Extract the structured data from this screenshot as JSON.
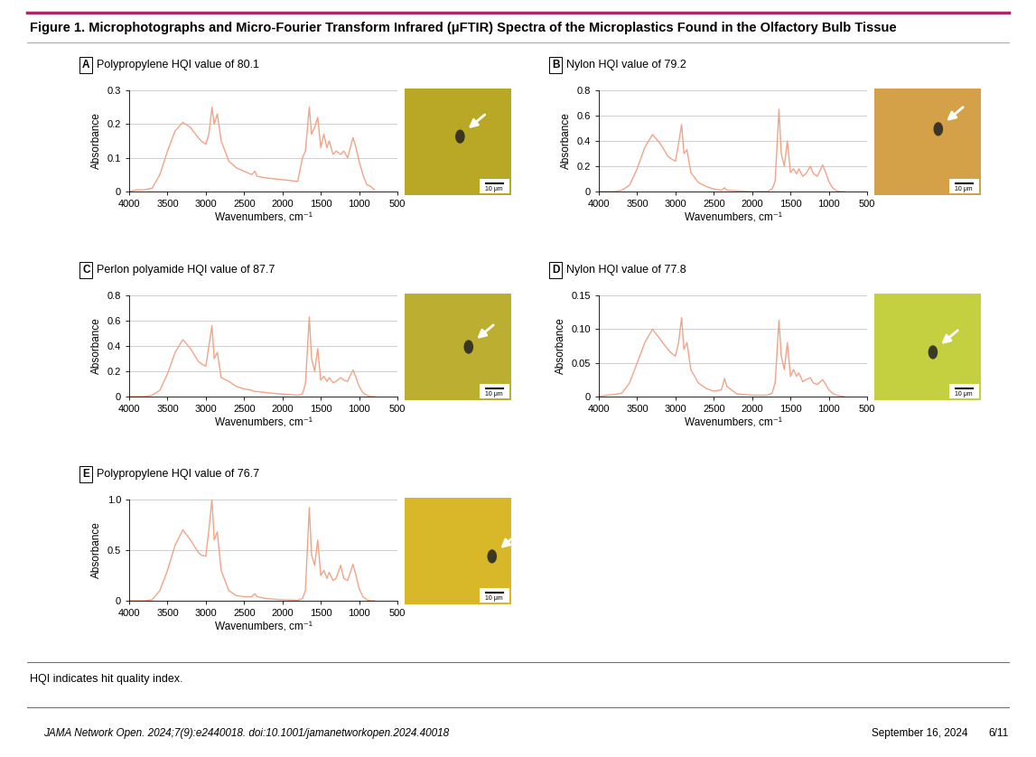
{
  "figure_title": "Figure 1. Microphotographs and Micro-Fourier Transform Infrared (μFTIR) Spectra of the Microplastics Found in the Olfactory Bulb Tissue",
  "chart_data": [
    {
      "type": "line",
      "panel": "A",
      "title": "Polypropylene HQI value of 80.1",
      "x_label": "Wavenumbers, cm⁻¹",
      "y_label": "Absorbance",
      "x": [
        4000,
        3900,
        3800,
        3700,
        3600,
        3500,
        3400,
        3300,
        3200,
        3100,
        3060,
        3000,
        2960,
        2920,
        2890,
        2850,
        2800,
        2700,
        2600,
        2500,
        2400,
        2360,
        2330,
        2200,
        2000,
        1800,
        1740,
        1700,
        1650,
        1620,
        1580,
        1540,
        1500,
        1460,
        1420,
        1390,
        1340,
        1300,
        1240,
        1200,
        1150,
        1080,
        1040,
        1000,
        950,
        900,
        850,
        800
      ],
      "values": [
        0,
        0.005,
        0.005,
        0.01,
        0.05,
        0.12,
        0.18,
        0.205,
        0.19,
        0.16,
        0.15,
        0.14,
        0.17,
        0.25,
        0.2,
        0.23,
        0.15,
        0.09,
        0.07,
        0.06,
        0.05,
        0.06,
        0.045,
        0.04,
        0.035,
        0.03,
        0.1,
        0.12,
        0.25,
        0.17,
        0.19,
        0.22,
        0.13,
        0.17,
        0.13,
        0.15,
        0.11,
        0.12,
        0.11,
        0.12,
        0.1,
        0.16,
        0.13,
        0.09,
        0.05,
        0.02,
        0.015,
        0.005
      ],
      "color": "#f2a488",
      "xlim": [
        4000,
        500
      ],
      "xticks": [
        4000,
        3500,
        3000,
        2500,
        2000,
        1500,
        1000,
        500
      ],
      "ylim": [
        0,
        0.3
      ],
      "yticks": [
        0,
        0.1,
        0.2,
        0.3
      ],
      "grid": true,
      "image": {
        "scale_bar": "10 μm"
      }
    },
    {
      "type": "line",
      "panel": "B",
      "title": "Nylon HQI value of 79.2",
      "x_label": "Wavenumbers, cm⁻¹",
      "y_label": "Absorbance",
      "x": [
        4000,
        3900,
        3800,
        3700,
        3600,
        3500,
        3400,
        3300,
        3200,
        3100,
        3060,
        3000,
        2960,
        2920,
        2890,
        2850,
        2800,
        2700,
        2600,
        2500,
        2400,
        2360,
        2330,
        2200,
        2000,
        1800,
        1740,
        1700,
        1650,
        1620,
        1580,
        1540,
        1500,
        1460,
        1420,
        1390,
        1340,
        1300,
        1240,
        1200,
        1150,
        1080,
        1040,
        1000,
        950,
        900,
        850,
        800
      ],
      "values": [
        0,
        0,
        0,
        0.01,
        0.05,
        0.18,
        0.35,
        0.45,
        0.38,
        0.28,
        0.26,
        0.24,
        0.38,
        0.53,
        0.3,
        0.33,
        0.15,
        0.07,
        0.04,
        0.02,
        0.01,
        0.03,
        0.01,
        0.005,
        0,
        0,
        0.02,
        0.08,
        0.65,
        0.3,
        0.2,
        0.4,
        0.15,
        0.18,
        0.14,
        0.18,
        0.12,
        0.14,
        0.2,
        0.14,
        0.12,
        0.21,
        0.15,
        0.08,
        0.03,
        0.005,
        0,
        0
      ],
      "color": "#f2a488",
      "xlim": [
        4000,
        500
      ],
      "xticks": [
        4000,
        3500,
        3000,
        2500,
        2000,
        1500,
        1000,
        500
      ],
      "ylim": [
        0,
        0.8
      ],
      "yticks": [
        0,
        0.2,
        0.4,
        0.6,
        0.8
      ],
      "grid": true,
      "image": {
        "scale_bar": "10 μm"
      }
    },
    {
      "type": "line",
      "panel": "C",
      "title": "Perlon polyamide HQI value of 87.7",
      "x_label": "Wavenumbers, cm⁻¹",
      "y_label": "Absorbance",
      "x": [
        4000,
        3900,
        3800,
        3700,
        3600,
        3500,
        3400,
        3300,
        3200,
        3100,
        3060,
        3000,
        2960,
        2920,
        2890,
        2850,
        2800,
        2700,
        2600,
        2500,
        2400,
        2360,
        2330,
        2200,
        2000,
        1800,
        1740,
        1700,
        1650,
        1620,
        1580,
        1540,
        1500,
        1460,
        1420,
        1390,
        1340,
        1300,
        1240,
        1200,
        1150,
        1080,
        1040,
        1000,
        950,
        900,
        850,
        800
      ],
      "values": [
        0,
        0,
        0,
        0.01,
        0.05,
        0.18,
        0.35,
        0.45,
        0.38,
        0.28,
        0.26,
        0.24,
        0.4,
        0.56,
        0.3,
        0.35,
        0.15,
        0.12,
        0.08,
        0.06,
        0.05,
        0.04,
        0.04,
        0.03,
        0.02,
        0.01,
        0.02,
        0.1,
        0.63,
        0.3,
        0.2,
        0.38,
        0.13,
        0.16,
        0.12,
        0.15,
        0.11,
        0.12,
        0.15,
        0.13,
        0.12,
        0.21,
        0.15,
        0.08,
        0.03,
        0.01,
        0,
        0
      ],
      "color": "#f2a488",
      "xlim": [
        4000,
        500
      ],
      "xticks": [
        4000,
        3500,
        3000,
        2500,
        2000,
        1500,
        1000,
        500
      ],
      "ylim": [
        0,
        0.8
      ],
      "yticks": [
        0,
        0.2,
        0.4,
        0.6,
        0.8
      ],
      "grid": true,
      "image": {
        "scale_bar": "10 μm"
      }
    },
    {
      "type": "line",
      "panel": "D",
      "title": "Nylon HQI value of 77.8",
      "x_label": "Wavenumbers, cm⁻¹",
      "y_label": "Absorbance",
      "x": [
        4000,
        3900,
        3800,
        3700,
        3600,
        3500,
        3400,
        3300,
        3200,
        3100,
        3060,
        3000,
        2960,
        2920,
        2890,
        2850,
        2800,
        2700,
        2600,
        2500,
        2400,
        2360,
        2330,
        2200,
        2000,
        1800,
        1740,
        1700,
        1650,
        1620,
        1580,
        1540,
        1500,
        1460,
        1420,
        1390,
        1340,
        1300,
        1240,
        1200,
        1150,
        1080,
        1040,
        1000,
        950,
        900,
        850,
        800
      ],
      "values": [
        0,
        0.002,
        0.003,
        0.005,
        0.02,
        0.05,
        0.08,
        0.1,
        0.085,
        0.07,
        0.065,
        0.06,
        0.08,
        0.117,
        0.07,
        0.08,
        0.04,
        0.02,
        0.012,
        0.008,
        0.01,
        0.027,
        0.015,
        0.004,
        0.002,
        0.002,
        0.005,
        0.02,
        0.113,
        0.06,
        0.04,
        0.08,
        0.03,
        0.04,
        0.03,
        0.035,
        0.022,
        0.025,
        0.028,
        0.02,
        0.018,
        0.025,
        0.018,
        0.01,
        0.005,
        0.002,
        0.001,
        0
      ],
      "color": "#f2a488",
      "xlim": [
        4000,
        500
      ],
      "xticks": [
        4000,
        3500,
        3000,
        2500,
        2000,
        1500,
        1000,
        500
      ],
      "ylim": [
        0,
        0.15
      ],
      "yticks": [
        0,
        0.05,
        {
          "value": 0.1,
          "label": "0.10"
        },
        0.15
      ],
      "grid": true,
      "image": {
        "scale_bar": "10 μm"
      }
    },
    {
      "type": "line",
      "panel": "E",
      "title": "Polypropylene HQI value of 76.7",
      "x_label": "Wavenumbers, cm⁻¹",
      "y_label": "Absorbance",
      "x": [
        4000,
        3900,
        3800,
        3700,
        3600,
        3500,
        3400,
        3300,
        3200,
        3100,
        3060,
        3000,
        2960,
        2920,
        2890,
        2850,
        2800,
        2700,
        2600,
        2500,
        2400,
        2360,
        2330,
        2200,
        2000,
        1800,
        1740,
        1700,
        1650,
        1620,
        1580,
        1540,
        1500,
        1460,
        1420,
        1390,
        1340,
        1300,
        1240,
        1200,
        1150,
        1080,
        1040,
        1000,
        950,
        900,
        850,
        800
      ],
      "values": [
        0,
        0,
        0,
        0.01,
        0.1,
        0.3,
        0.55,
        0.7,
        0.6,
        0.48,
        0.45,
        0.44,
        0.7,
        1.0,
        0.6,
        0.68,
        0.3,
        0.1,
        0.05,
        0.04,
        0.04,
        0.07,
        0.04,
        0.02,
        0.01,
        0.005,
        0.02,
        0.1,
        0.92,
        0.45,
        0.35,
        0.6,
        0.25,
        0.3,
        0.22,
        0.28,
        0.2,
        0.22,
        0.35,
        0.22,
        0.2,
        0.36,
        0.25,
        0.12,
        0.04,
        0.01,
        0,
        0
      ],
      "color": "#f2a488",
      "xlim": [
        4000,
        500
      ],
      "xticks": [
        4000,
        3500,
        3000,
        2500,
        2000,
        1500,
        1000,
        500
      ],
      "ylim": [
        0,
        1
      ],
      "yticks": [
        0,
        0.5,
        {
          "value": 1,
          "label": "1.0"
        }
      ],
      "grid": true,
      "image": {
        "scale_bar": "10 μm"
      }
    }
  ],
  "note": "HQI indicates hit quality index.",
  "footer": {
    "citation": "JAMA Network Open. 2024;7(9):e2440018. doi:10.1001/jamanetworkopen.2024.40018",
    "date": "September 16, 2024",
    "page": "6/11"
  }
}
